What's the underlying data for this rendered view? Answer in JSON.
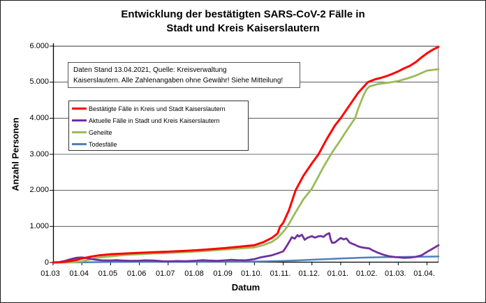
{
  "title": {
    "line1": "Entwicklung der bestätigten SARS-CoV-2 Fälle in",
    "line2": "Stadt und Kreis Kaiserslautern"
  },
  "note": {
    "line1": "Daten Stand 13.04.2021, Quelle: Kreisverwaltung",
    "line2": "Kaiserslautern. Alle Zahlenangaben ohne Gewähr! Siehe Mitteilung!"
  },
  "colors": {
    "confirmed": "#FF0000",
    "active": "#7030A0",
    "recovered": "#9BBB59",
    "deaths": "#4F81BD",
    "gridline": "#3f3f3f",
    "plot_border": "#7f7f7f",
    "axis": "#000000"
  },
  "chart_data": {
    "type": "line",
    "title": "Entwicklung der bestätigten SARS-CoV-2 Fälle in Stadt und Kreis Kaiserslautern",
    "xlabel": "Datum",
    "ylabel": "Anzahl Personen",
    "x_unit": "month index, 0 = 01.03.2020, 13 = 01.04.2021, 13.4 = 13.04.2021 (Datenstand)",
    "xlim": [
      0,
      13.4
    ],
    "ylim": [
      0,
      6000
    ],
    "grid": "horizontal",
    "legend_position": "upper-left-inside",
    "x_tick_labels": [
      "01.03",
      "01.04",
      "01.05",
      "01.06",
      "01.07",
      "01.08",
      "01.09",
      "01.10.",
      "01.11.",
      "01.12.",
      "01.01.",
      "01.02.",
      "01.03.",
      "01.04."
    ],
    "y_tick_labels": [
      "0",
      "1.000",
      "2.000",
      "3.000",
      "4.000",
      "5.000",
      "6.000"
    ],
    "series": [
      {
        "name": "Bestätigte Fälle in Kreis und Stadt Kaiserslautern",
        "color": "#FF0000",
        "width": 3,
        "points": [
          [
            0,
            0
          ],
          [
            0.3,
            10
          ],
          [
            0.6,
            40
          ],
          [
            0.8,
            70
          ],
          [
            1,
            110
          ],
          [
            1.3,
            160
          ],
          [
            1.6,
            200
          ],
          [
            2,
            230
          ],
          [
            2.5,
            250
          ],
          [
            3,
            270
          ],
          [
            3.5,
            285
          ],
          [
            4,
            300
          ],
          [
            4.5,
            320
          ],
          [
            5,
            340
          ],
          [
            5.5,
            370
          ],
          [
            6,
            400
          ],
          [
            6.5,
            440
          ],
          [
            7,
            480
          ],
          [
            7.3,
            560
          ],
          [
            7.6,
            680
          ],
          [
            7.8,
            800
          ],
          [
            7.9,
            1000
          ],
          [
            8,
            1100
          ],
          [
            8.2,
            1450
          ],
          [
            8.43,
            2000
          ],
          [
            8.7,
            2400
          ],
          [
            9,
            2750
          ],
          [
            9.23,
            3000
          ],
          [
            9.5,
            3400
          ],
          [
            9.8,
            3800
          ],
          [
            10,
            4000
          ],
          [
            10.3,
            4350
          ],
          [
            10.6,
            4700
          ],
          [
            10.94,
            5000
          ],
          [
            11.2,
            5080
          ],
          [
            11.4,
            5120
          ],
          [
            11.6,
            5170
          ],
          [
            11.8,
            5230
          ],
          [
            12,
            5300
          ],
          [
            12.2,
            5380
          ],
          [
            12.4,
            5450
          ],
          [
            12.6,
            5550
          ],
          [
            12.8,
            5680
          ],
          [
            13,
            5800
          ],
          [
            13.2,
            5900
          ],
          [
            13.4,
            5980
          ]
        ]
      },
      {
        "name": "Aktuelle Fälle in Stadt und Kreis Kaiserslautern",
        "color": "#7030A0",
        "width": 2.8,
        "points": [
          [
            0,
            0
          ],
          [
            0.2,
            10
          ],
          [
            0.4,
            40
          ],
          [
            0.6,
            90
          ],
          [
            0.8,
            130
          ],
          [
            1,
            140
          ],
          [
            1.1,
            130
          ],
          [
            1.3,
            100
          ],
          [
            1.5,
            75
          ],
          [
            1.7,
            60
          ],
          [
            2,
            55
          ],
          [
            2.2,
            65
          ],
          [
            2.4,
            55
          ],
          [
            2.7,
            45
          ],
          [
            3,
            50
          ],
          [
            3.2,
            60
          ],
          [
            3.5,
            55
          ],
          [
            3.8,
            35
          ],
          [
            4,
            30
          ],
          [
            4.3,
            40
          ],
          [
            4.6,
            35
          ],
          [
            5,
            50
          ],
          [
            5.2,
            65
          ],
          [
            5.4,
            55
          ],
          [
            5.7,
            45
          ],
          [
            6,
            60
          ],
          [
            6.2,
            75
          ],
          [
            6.4,
            65
          ],
          [
            6.7,
            60
          ],
          [
            7,
            95
          ],
          [
            7.2,
            140
          ],
          [
            7.4,
            170
          ],
          [
            7.6,
            200
          ],
          [
            7.8,
            250
          ],
          [
            8,
            310
          ],
          [
            8.1,
            430
          ],
          [
            8.2,
            560
          ],
          [
            8.3,
            700
          ],
          [
            8.4,
            660
          ],
          [
            8.5,
            760
          ],
          [
            8.55,
            720
          ],
          [
            8.65,
            770
          ],
          [
            8.75,
            630
          ],
          [
            8.85,
            690
          ],
          [
            9,
            730
          ],
          [
            9.1,
            690
          ],
          [
            9.2,
            720
          ],
          [
            9.3,
            735
          ],
          [
            9.4,
            710
          ],
          [
            9.5,
            775
          ],
          [
            9.6,
            815
          ],
          [
            9.65,
            640
          ],
          [
            9.7,
            545
          ],
          [
            9.8,
            555
          ],
          [
            9.9,
            620
          ],
          [
            10,
            680
          ],
          [
            10.1,
            640
          ],
          [
            10.2,
            665
          ],
          [
            10.3,
            560
          ],
          [
            10.4,
            520
          ],
          [
            10.5,
            490
          ],
          [
            10.6,
            450
          ],
          [
            10.7,
            425
          ],
          [
            10.8,
            410
          ],
          [
            11,
            390
          ],
          [
            11.1,
            340
          ],
          [
            11.3,
            270
          ],
          [
            11.5,
            210
          ],
          [
            11.7,
            170
          ],
          [
            11.9,
            150
          ],
          [
            12,
            145
          ],
          [
            12.2,
            130
          ],
          [
            12.4,
            135
          ],
          [
            12.6,
            155
          ],
          [
            12.8,
            195
          ],
          [
            13,
            295
          ],
          [
            13.2,
            385
          ],
          [
            13.4,
            480
          ]
        ]
      },
      {
        "name": "Geheilte",
        "color": "#9BBB59",
        "width": 2.8,
        "points": [
          [
            0,
            0
          ],
          [
            0.7,
            5
          ],
          [
            1,
            30
          ],
          [
            1.3,
            90
          ],
          [
            1.6,
            140
          ],
          [
            2,
            170
          ],
          [
            2.5,
            210
          ],
          [
            3,
            230
          ],
          [
            3.5,
            250
          ],
          [
            4,
            265
          ],
          [
            4.5,
            285
          ],
          [
            5,
            305
          ],
          [
            5.5,
            330
          ],
          [
            6,
            360
          ],
          [
            6.5,
            390
          ],
          [
            7,
            420
          ],
          [
            7.3,
            480
          ],
          [
            7.6,
            570
          ],
          [
            7.8,
            680
          ],
          [
            8,
            850
          ],
          [
            8.15,
            1000
          ],
          [
            8.4,
            1350
          ],
          [
            8.7,
            1750
          ],
          [
            9,
            2050
          ],
          [
            9.2,
            2350
          ],
          [
            9.4,
            2650
          ],
          [
            9.7,
            3050
          ],
          [
            10,
            3400
          ],
          [
            10.2,
            3650
          ],
          [
            10.5,
            4000
          ],
          [
            10.6,
            4250
          ],
          [
            10.7,
            4450
          ],
          [
            10.8,
            4650
          ],
          [
            10.9,
            4800
          ],
          [
            11,
            4880
          ],
          [
            11.3,
            4950
          ],
          [
            11.6,
            4980
          ],
          [
            12,
            5030
          ],
          [
            12.3,
            5100
          ],
          [
            12.6,
            5180
          ],
          [
            12.8,
            5250
          ],
          [
            13,
            5320
          ],
          [
            13.4,
            5360
          ]
        ]
      },
      {
        "name": "Todesfälle",
        "color": "#4F81BD",
        "width": 2.5,
        "points": [
          [
            0,
            0
          ],
          [
            0.5,
            1
          ],
          [
            1,
            5
          ],
          [
            1.5,
            10
          ],
          [
            2,
            15
          ],
          [
            2.5,
            18
          ],
          [
            3,
            20
          ],
          [
            4,
            20
          ],
          [
            5,
            21
          ],
          [
            6,
            22
          ],
          [
            6.5,
            24
          ],
          [
            7,
            27
          ],
          [
            7.5,
            32
          ],
          [
            8,
            42
          ],
          [
            8.5,
            58
          ],
          [
            9,
            78
          ],
          [
            9.3,
            88
          ],
          [
            9.6,
            96
          ],
          [
            10,
            110
          ],
          [
            10.3,
            120
          ],
          [
            10.6,
            130
          ],
          [
            11,
            140
          ],
          [
            11.3,
            146
          ],
          [
            11.6,
            150
          ],
          [
            12,
            153
          ],
          [
            12.4,
            157
          ],
          [
            12.8,
            160
          ],
          [
            13,
            162
          ],
          [
            13.4,
            166
          ]
        ]
      }
    ]
  }
}
